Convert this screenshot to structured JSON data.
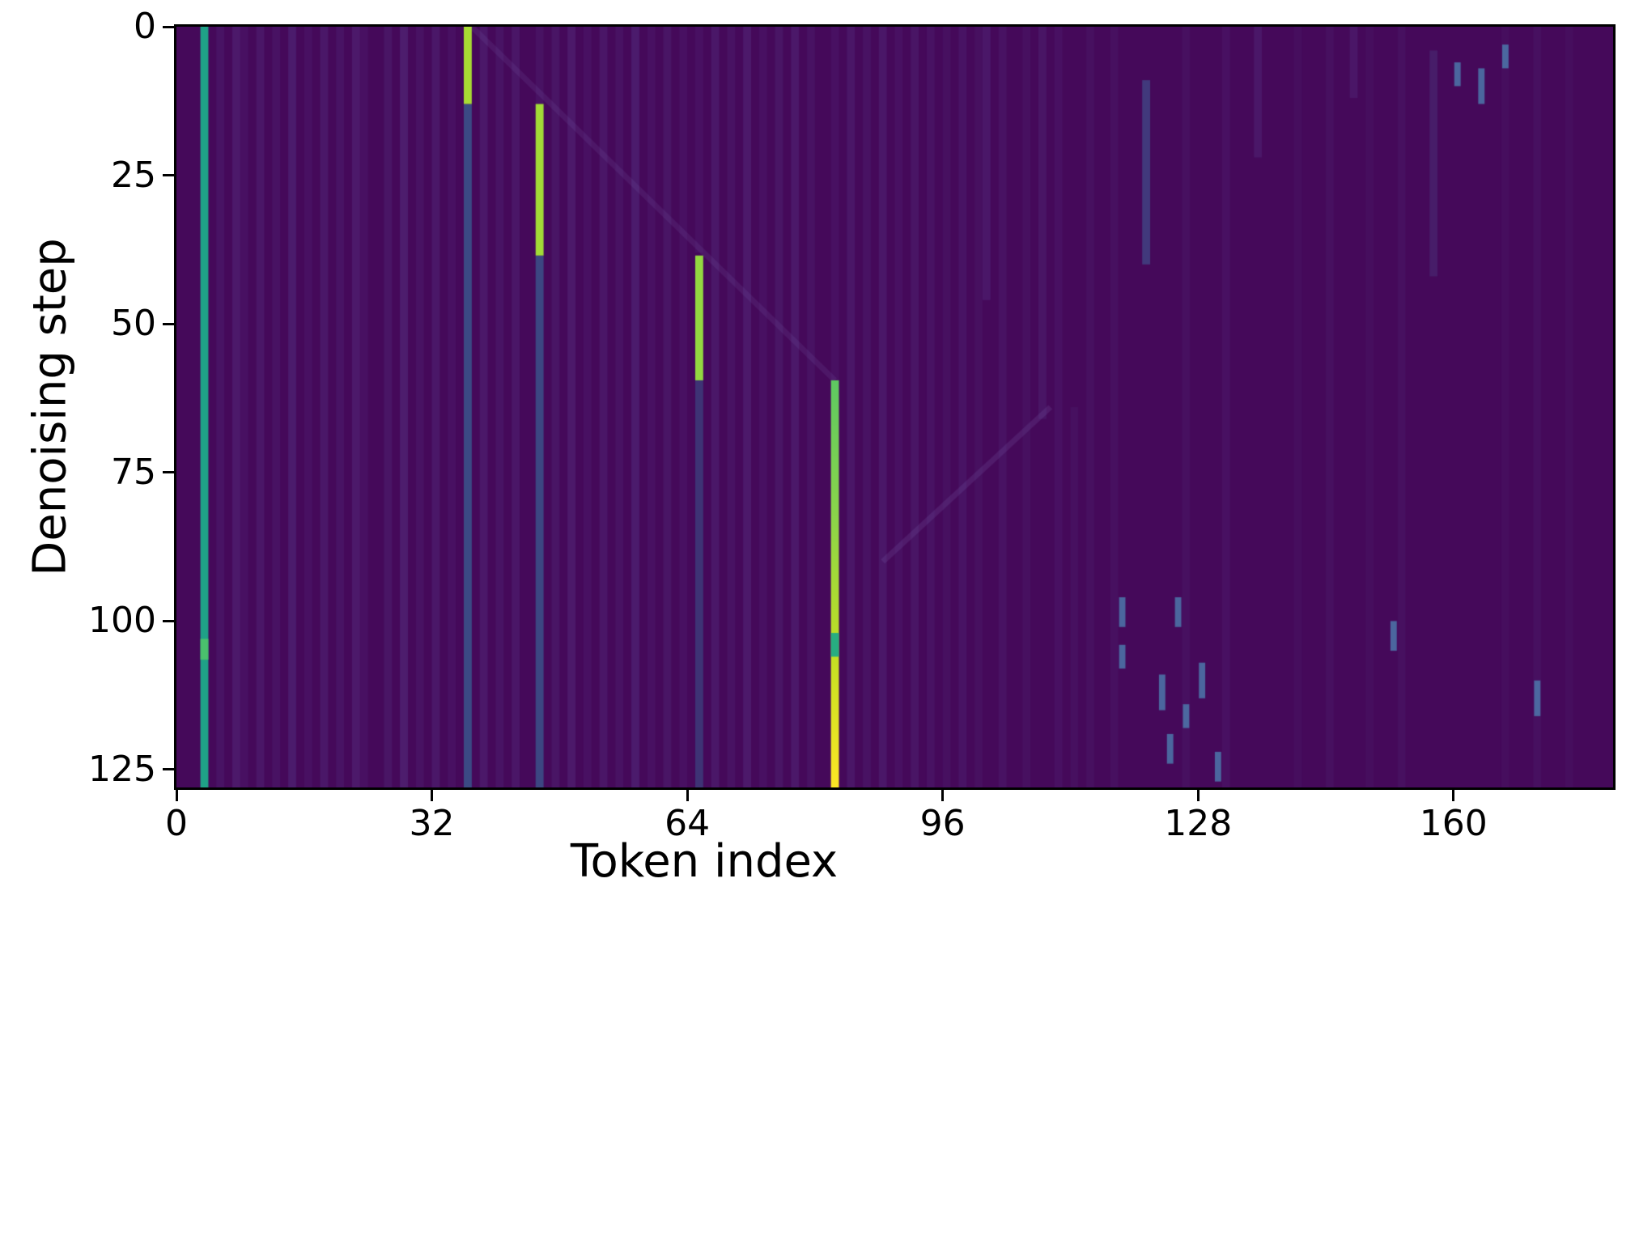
{
  "chart_data": {
    "type": "heatmap",
    "title": "",
    "xlabel": "Token index",
    "ylabel": "Denoising step",
    "x_range": [
      0,
      180
    ],
    "y_range": [
      0,
      128
    ],
    "x_ticks": [
      0,
      32,
      64,
      96,
      128,
      160
    ],
    "y_ticks": [
      0,
      25,
      50,
      75,
      100,
      125
    ],
    "colormap": "viridis",
    "grid": false,
    "legend": "none",
    "colors": {
      "background": "#45095a",
      "stripe": "#5f4b9b",
      "tail": "#39568c",
      "speckle": "#4d85b5",
      "teal": "#1fa187",
      "green": "#a8db34",
      "yellow": "#fde725",
      "spine": "#000000"
    },
    "anchor_column": {
      "token": 3,
      "step_start": 0,
      "step_end": 128,
      "color": "#1fa187",
      "blip": {
        "step_start": 103,
        "step_end": 106.5,
        "color": "#4ac16d"
      }
    },
    "bright_segments": [
      {
        "token": 36,
        "step_start": 0,
        "step_end": 13,
        "color": "#a8db34",
        "tail_alpha": 0.85
      },
      {
        "token": 45,
        "step_start": 13,
        "step_end": 38.5,
        "color": "#a2da37",
        "tail_alpha": 0.8
      },
      {
        "token": 65,
        "step_start": 38.5,
        "step_end": 59.5,
        "color": "#93d741",
        "tail_alpha": 0.55
      },
      {
        "token": 82,
        "step_start": 59.5,
        "step_end": 128,
        "color": "#5ec962",
        "gradient": [
          "#5ec962",
          "#8bd54a",
          "#c2df23",
          "#fde725"
        ],
        "blip": {
          "step_start": 102,
          "step_end": 106,
          "color": "#27ad81"
        },
        "tail_alpha": 0
      }
    ],
    "faint_stripes": [
      [
        5,
        0.16
      ],
      [
        7,
        0.26
      ],
      [
        8,
        0.12
      ],
      [
        10,
        0.2
      ],
      [
        12,
        0.15
      ],
      [
        14,
        0.28
      ],
      [
        16,
        0.12
      ],
      [
        18,
        0.22
      ],
      [
        20,
        0.16
      ],
      [
        22,
        0.26
      ],
      [
        23,
        0.12
      ],
      [
        26,
        0.18
      ],
      [
        28,
        0.3
      ],
      [
        30,
        0.14
      ],
      [
        32,
        0.22
      ],
      [
        34,
        0.12
      ],
      [
        38,
        0.24
      ],
      [
        40,
        0.16
      ],
      [
        42,
        0.2
      ],
      [
        47,
        0.18
      ],
      [
        49,
        0.26
      ],
      [
        51,
        0.12
      ],
      [
        53,
        0.2
      ],
      [
        55,
        0.15
      ],
      [
        57,
        0.28
      ],
      [
        59,
        0.12
      ],
      [
        61,
        0.18
      ],
      [
        63,
        0.12
      ],
      [
        67,
        0.22
      ],
      [
        69,
        0.15
      ],
      [
        71,
        0.26
      ],
      [
        73,
        0.12
      ],
      [
        75,
        0.18
      ],
      [
        77,
        0.24
      ],
      [
        79,
        0.14
      ],
      [
        84,
        0.2
      ],
      [
        86,
        0.14
      ],
      [
        88,
        0.22
      ],
      [
        90,
        0.12
      ],
      [
        92,
        0.18
      ],
      [
        94,
        0.15
      ],
      [
        96,
        0.1
      ],
      [
        98,
        0.16
      ],
      [
        100,
        0.1
      ],
      [
        103,
        0.14
      ],
      [
        106,
        0.1
      ],
      [
        110,
        0.12
      ],
      [
        114,
        0.1
      ],
      [
        117,
        0.1
      ],
      [
        126,
        0.1
      ],
      [
        131,
        0.12
      ],
      [
        140,
        0.08
      ],
      [
        144,
        0.1
      ],
      [
        149,
        0.08
      ],
      [
        153,
        0.1
      ],
      [
        166,
        0.08
      ],
      [
        170,
        0.1
      ],
      [
        174,
        0.08
      ]
    ],
    "partial_columns": [
      {
        "t": 45,
        "s0": 0,
        "s1": 13,
        "a": 0.15,
        "c": "#5f4b9b"
      },
      {
        "t": 65,
        "s0": 0,
        "s1": 38,
        "a": 0.12,
        "c": "#5f4b9b"
      },
      {
        "t": 82,
        "s0": 0,
        "s1": 60,
        "a": 0.12,
        "c": "#5f4b9b"
      },
      {
        "t": 101,
        "s0": 0,
        "s1": 46,
        "a": 0.22,
        "c": "#5f4b9b"
      },
      {
        "t": 108,
        "s0": 0,
        "s1": 66,
        "a": 0.18,
        "c": "#5f4b9b"
      },
      {
        "t": 121,
        "s0": 9,
        "s1": 40,
        "a": 0.5,
        "c": "#3d6a9e"
      },
      {
        "t": 135,
        "s0": 0,
        "s1": 22,
        "a": 0.22,
        "c": "#5f4b9b"
      },
      {
        "t": 147,
        "s0": 0,
        "s1": 12,
        "a": 0.2,
        "c": "#5f4b9b"
      },
      {
        "t": 157,
        "s0": 4,
        "s1": 42,
        "a": 0.28,
        "c": "#50548f"
      },
      {
        "t": 112,
        "s0": 64,
        "s1": 128,
        "a": 0.1,
        "c": "#5f4b9b"
      }
    ],
    "speckles": [
      {
        "t": 118,
        "s0": 96,
        "s1": 101
      },
      {
        "t": 118,
        "s0": 104,
        "s1": 108
      },
      {
        "t": 123,
        "s0": 109,
        "s1": 115
      },
      {
        "t": 124,
        "s0": 119,
        "s1": 124
      },
      {
        "t": 125,
        "s0": 96,
        "s1": 101
      },
      {
        "t": 126,
        "s0": 114,
        "s1": 118
      },
      {
        "t": 128,
        "s0": 107,
        "s1": 113
      },
      {
        "t": 130,
        "s0": 122,
        "s1": 127
      },
      {
        "t": 152,
        "s0": 100,
        "s1": 105
      },
      {
        "t": 160,
        "s0": 6,
        "s1": 10
      },
      {
        "t": 163,
        "s0": 7,
        "s1": 13
      },
      {
        "t": 166,
        "s0": 3,
        "s1": 7
      },
      {
        "t": 170,
        "s0": 110,
        "s1": 116
      }
    ],
    "diagonals": [
      {
        "x0": 36.5,
        "y0": 0,
        "x1": 82,
        "y1": 59.5,
        "a": 0.16,
        "c": "#7b62ad",
        "w": 7
      },
      {
        "x0": 88,
        "y0": 90,
        "x1": 109,
        "y1": 64,
        "a": 0.2,
        "c": "#7b62ad",
        "w": 7
      }
    ]
  }
}
